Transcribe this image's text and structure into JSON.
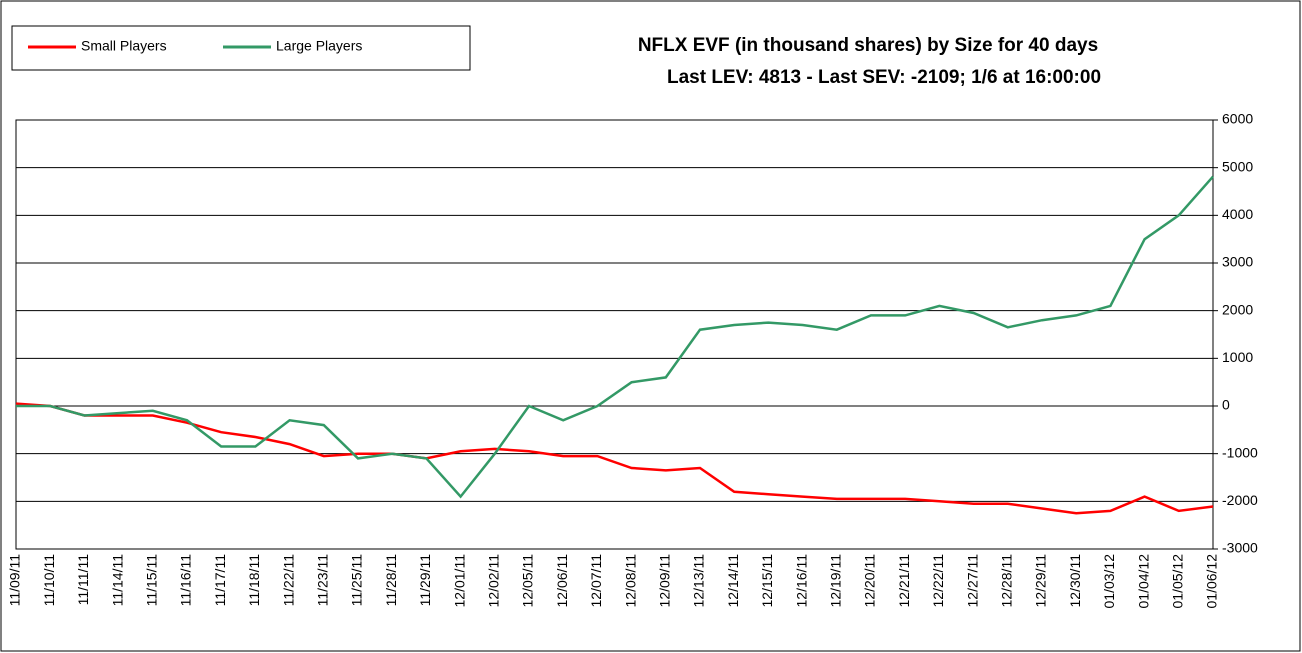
{
  "chart_data": {
    "type": "line",
    "title": "NFLX EVF (in thousand shares) by Size for 40 days",
    "subtitle": "Last LEV: 4813 - Last SEV: -2109; 1/6 at 16:00:00",
    "categories": [
      "11/09/11",
      "11/10/11",
      "11/11/11",
      "11/14/11",
      "11/15/11",
      "11/16/11",
      "11/17/11",
      "11/18/11",
      "11/22/11",
      "11/23/11",
      "11/25/11",
      "11/28/11",
      "11/29/11",
      "12/01/11",
      "12/02/11",
      "12/05/11",
      "12/06/11",
      "12/07/11",
      "12/08/11",
      "12/09/11",
      "12/13/11",
      "12/14/11",
      "12/15/11",
      "12/16/11",
      "12/19/11",
      "12/20/11",
      "12/21/11",
      "12/22/11",
      "12/27/11",
      "12/28/11",
      "12/29/11",
      "12/30/11",
      "01/03/12",
      "01/04/12",
      "01/05/12",
      "01/06/12"
    ],
    "series": [
      {
        "name": "Small Players",
        "color": "#ff0000",
        "values": [
          50,
          0,
          -200,
          -200,
          -200,
          -350,
          -550,
          -650,
          -800,
          -1050,
          -1000,
          -1000,
          -1100,
          -950,
          -900,
          -950,
          -1050,
          -1050,
          -1300,
          -1350,
          -1300,
          -1800,
          -1850,
          -1900,
          -1950,
          -1950,
          -1950,
          -2000,
          -2050,
          -2050,
          -2150,
          -2250,
          -2200,
          -1900,
          -2200,
          -2109
        ]
      },
      {
        "name": "Large Players",
        "color": "#339966",
        "values": [
          0,
          0,
          -200,
          -150,
          -100,
          -300,
          -850,
          -850,
          -300,
          -400,
          -1100,
          -1000,
          -1100,
          -1900,
          -1000,
          0,
          -300,
          0,
          500,
          600,
          1600,
          1700,
          1750,
          1700,
          1600,
          1900,
          1900,
          2100,
          1950,
          1650,
          1800,
          1900,
          2100,
          3500,
          4000,
          4813
        ]
      }
    ],
    "ylim": [
      -3000,
      6000
    ],
    "yticks": [
      -3000,
      -2000,
      -1000,
      0,
      1000,
      2000,
      3000,
      4000,
      5000,
      6000
    ],
    "grid": true
  }
}
